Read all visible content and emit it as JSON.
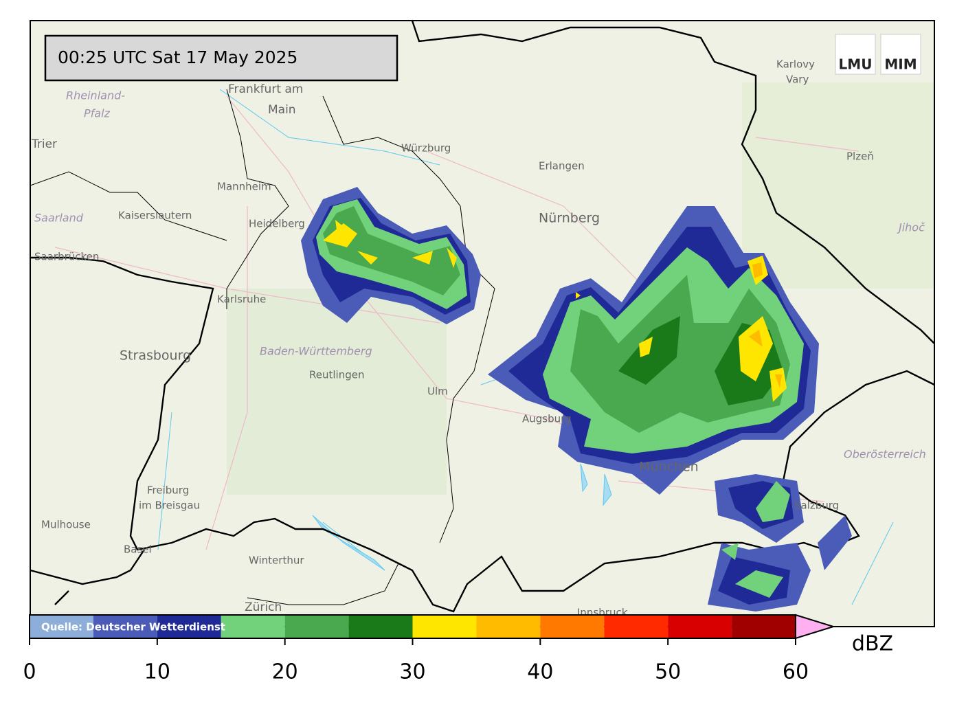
{
  "timestamp": "00:25 UTC  Sat 17 May 2025",
  "logo": [
    "LMU",
    "MIM"
  ],
  "source": "Quelle: Deutscher Wetterdienst",
  "places": [
    "Frankfurt am",
    "Main",
    "Rheinland-",
    "Pfalz",
    "Trier",
    "Würzburg",
    "Erlangen",
    "Nürnberg",
    "Mannheim",
    "Heidelberg",
    "Kaiserslautern",
    "Saarland",
    "Saarbrücken",
    "Karlsruhe",
    "Strasbourg",
    "Baden-Württemberg",
    "Reutlingen",
    "Ulm",
    "Augsburg",
    "München",
    "Freiburg",
    "im Breisgau",
    "Mulhouse",
    "Basel",
    "Winterthur",
    "Zürich",
    "Innsbruck",
    "Salzburg",
    "Oberösterreich",
    "Karlovy",
    "Vary",
    "Plzeň",
    "Jihoč"
  ],
  "colorbar": {
    "bounds": [
      0,
      5,
      10,
      15,
      20,
      25,
      30,
      35,
      40,
      45,
      50,
      55,
      60
    ],
    "colors": [
      "#8caed8",
      "#4a5cb8",
      "#1f2a96",
      "#72d27c",
      "#4aa84e",
      "#1a7a1a",
      "#ffe600",
      "#ffbb00",
      "#ff7800",
      "#ff2a00",
      "#d80000",
      "#a00000"
    ],
    "extend_color": "#ffb0f0",
    "ticks": [
      0,
      10,
      20,
      30,
      40,
      50,
      60
    ],
    "unit": "dBZ"
  }
}
